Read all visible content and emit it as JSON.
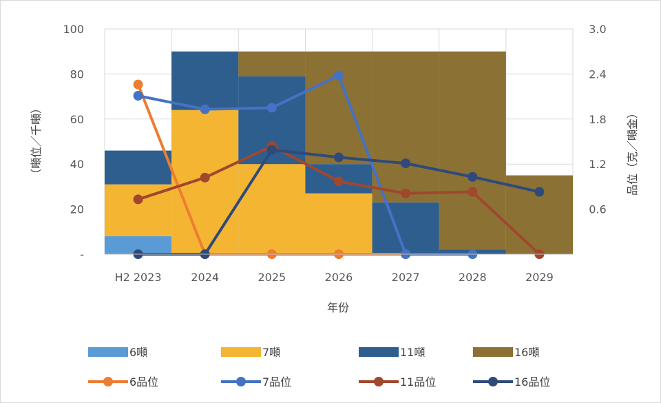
{
  "chart_data": {
    "type": "bar+line",
    "title": "",
    "categories": [
      "H2 2023",
      "2024",
      "2025",
      "2026",
      "2027",
      "2028",
      "2029"
    ],
    "xlabel": "年份",
    "ylabel_left": "（噸位／千噸）",
    "ylabel_right": "品位（克／噸金）",
    "y_left": {
      "min": 0,
      "max": 100,
      "ticks": [
        "-",
        "20",
        "40",
        "60",
        "80",
        "100"
      ],
      "tick_values": [
        0,
        20,
        40,
        60,
        80,
        100
      ]
    },
    "y_right": {
      "min": 0,
      "max": 3.0,
      "ticks": [
        "",
        "0.6",
        "1.2",
        "1.8",
        "2.4",
        "3.0"
      ],
      "tick_values": [
        0,
        0.6,
        1.2,
        1.8,
        2.4,
        3.0
      ]
    },
    "grid": true,
    "legend_position": "bottom",
    "bar_series": [
      {
        "name": "6噸",
        "color": "#5B9BD5",
        "values": [
          8,
          0,
          0,
          0,
          0,
          0,
          0
        ]
      },
      {
        "name": "7噸",
        "color": "#F4B533",
        "values": [
          23,
          64,
          40,
          27,
          0,
          0,
          0
        ]
      },
      {
        "name": "11噸",
        "color": "#2E5E8E",
        "values": [
          15,
          26,
          39,
          13,
          23,
          2,
          0
        ]
      },
      {
        "name": "16噸",
        "color": "#8C7134",
        "values": [
          0,
          0,
          11,
          50,
          67,
          88,
          35
        ]
      }
    ],
    "line_series": [
      {
        "name": "6品位",
        "color": "#ED7D31",
        "values": [
          2.26,
          0,
          0,
          0,
          0,
          null,
          null
        ]
      },
      {
        "name": "7品位",
        "color": "#4472C4",
        "values": [
          2.11,
          1.93,
          1.95,
          2.38,
          0,
          0,
          null
        ]
      },
      {
        "name": "11品位",
        "color": "#A0472D",
        "values": [
          0.73,
          1.02,
          1.44,
          0.97,
          0.81,
          0.83,
          0
        ]
      },
      {
        "name": "16品位",
        "color": "#2F4A7A",
        "values": [
          0,
          0,
          1.39,
          1.29,
          1.21,
          1.03,
          0.83
        ]
      }
    ]
  }
}
